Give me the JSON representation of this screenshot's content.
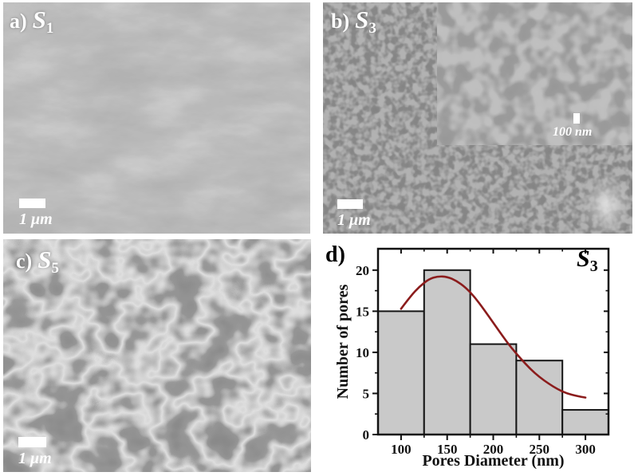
{
  "panels": {
    "a": {
      "prefix": "a)",
      "sample": "S",
      "sub": "1",
      "scalebar_label": "1 μm"
    },
    "b": {
      "prefix": "b)",
      "sample": "S",
      "sub": "3",
      "scalebar_label": "1 μm",
      "inset_scalebar_label": "100 nm"
    },
    "c": {
      "prefix": "c)",
      "sample": "S",
      "sub": "5",
      "scalebar_label": "1 μm"
    },
    "d": {
      "prefix": "d)",
      "sample": "S",
      "sub": "3"
    }
  },
  "chart_data": {
    "type": "bar",
    "title": "",
    "xlabel": "Pores Diameter (nm)",
    "ylabel": "Number of pores",
    "annotation": "S3",
    "bin_edges": [
      75,
      125,
      175,
      225,
      275,
      325
    ],
    "categories": [
      "75-125",
      "125-175",
      "175-225",
      "225-275",
      "275-325"
    ],
    "values": [
      15,
      20,
      11,
      9,
      3
    ],
    "x_ticks": [
      100,
      150,
      200,
      250,
      300
    ],
    "x_minor_ticks": [
      125,
      175,
      225,
      275
    ],
    "y_ticks": [
      0,
      5,
      10,
      15,
      20
    ],
    "y_minor_ticks": [
      2.5,
      7.5,
      12.5,
      17.5
    ],
    "xlim": [
      75,
      325
    ],
    "ylim": [
      0,
      22.6
    ],
    "grid": false,
    "legend": false,
    "bar_fill": "#c9c9c9",
    "bar_stroke": "#151515",
    "curve_color": "#8b1c1c",
    "curve": {
      "type": "fit",
      "points": [
        [
          100,
          15.3
        ],
        [
          110,
          16.8
        ],
        [
          120,
          18.0
        ],
        [
          130,
          18.9
        ],
        [
          140,
          19.25
        ],
        [
          150,
          19.2
        ],
        [
          160,
          18.7
        ],
        [
          170,
          17.9
        ],
        [
          180,
          16.7
        ],
        [
          190,
          15.2
        ],
        [
          200,
          13.6
        ],
        [
          210,
          12.0
        ],
        [
          220,
          10.5
        ],
        [
          230,
          9.2
        ],
        [
          240,
          8.0
        ],
        [
          250,
          7.0
        ],
        [
          260,
          6.2
        ],
        [
          270,
          5.5
        ],
        [
          280,
          5.0
        ],
        [
          290,
          4.7
        ],
        [
          300,
          4.5
        ]
      ]
    }
  }
}
